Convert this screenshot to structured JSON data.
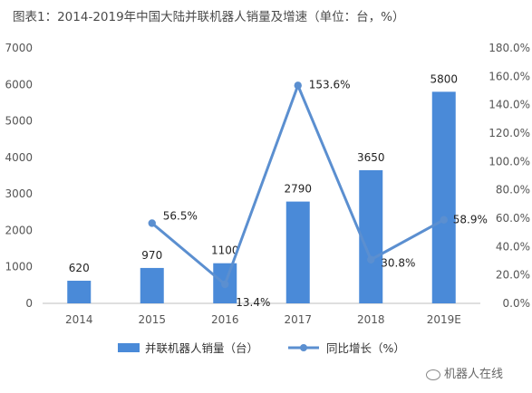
{
  "title": "图表1：2014-2019年中国大陆并联机器人销量及增速（单位：台，%）",
  "watermark": "机器人在线",
  "colors": {
    "bar": "#4a8ad8",
    "line": "#5b8fd0",
    "axis": "#bfbfbf",
    "grid": "#e6e6e6"
  },
  "chart_data": {
    "type": "bar",
    "categories": [
      "2014",
      "2015",
      "2016",
      "2017",
      "2018",
      "2019E"
    ],
    "series": [
      {
        "name": "并联机器人销量（台）",
        "type": "bar",
        "axis": "left",
        "values": [
          620,
          970,
          1100,
          2790,
          3650,
          5800
        ],
        "labels": [
          "620",
          "970",
          "1100",
          "2790",
          "3650",
          "5800"
        ]
      },
      {
        "name": "同比增长（%）",
        "type": "line",
        "axis": "right",
        "values": [
          null,
          56.5,
          13.4,
          153.6,
          30.8,
          58.9
        ],
        "labels": [
          "",
          "56.5%",
          "13.4%",
          "153.6%",
          "30.8%",
          "58.9%"
        ]
      }
    ],
    "y_left": {
      "min": 0,
      "max": 7000,
      "step": 1000,
      "ticks": [
        "0",
        "1000",
        "2000",
        "3000",
        "4000",
        "5000",
        "6000",
        "7000"
      ]
    },
    "y_right": {
      "min": 0,
      "max": 180,
      "step": 20,
      "ticks": [
        "0.0%",
        "20.0%",
        "40.0%",
        "60.0%",
        "80.0%",
        "100.0%",
        "120.0%",
        "140.0%",
        "160.0%",
        "180.0%"
      ]
    },
    "grid": false,
    "legend_position": "bottom"
  }
}
